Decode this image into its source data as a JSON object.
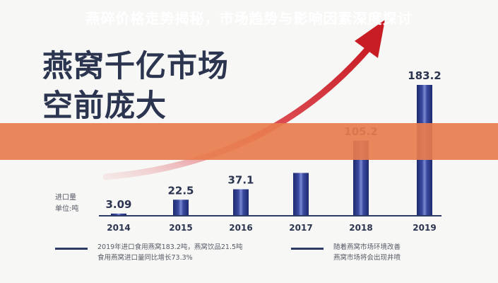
{
  "headline": {
    "line1": "燕窝千亿市场",
    "line2": "空前庞大"
  },
  "banner": {
    "title": "燕碎价格走势揭秘，市场趋势与影响因素深度探讨"
  },
  "units": {
    "line1": "进口量",
    "line2": "单位:吨"
  },
  "footnotes": {
    "left_line1": "2019年进口食用燕窝183.2吨，燕窝饮品21.5吨",
    "left_line2": "食用燕窝进口量同比增长73.3%",
    "right_line1": "随着燕窝市场环境改善",
    "right_line2": "燕窝市场将会出现井喷"
  },
  "colors": {
    "bar_dark": "#1e2a6e",
    "bar_light": "#6c7bc9",
    "arrow": "#d6282f",
    "headline": "#2b3550",
    "banner": "#e87c4e",
    "axis": "#2b3a66"
  },
  "chart_data": {
    "type": "bar",
    "categories": [
      "2014",
      "2015",
      "2016",
      "2017",
      "2018",
      "2019"
    ],
    "values": [
      3.09,
      22.5,
      37.1,
      60,
      105.2,
      183.2
    ],
    "data_labels": [
      "3.09",
      "22.5",
      "37.1",
      "",
      "105.2",
      "183.2"
    ],
    "ylim": [
      0,
      183.2
    ],
    "trend_arrow": true,
    "legend": "none",
    "grid": false
  }
}
